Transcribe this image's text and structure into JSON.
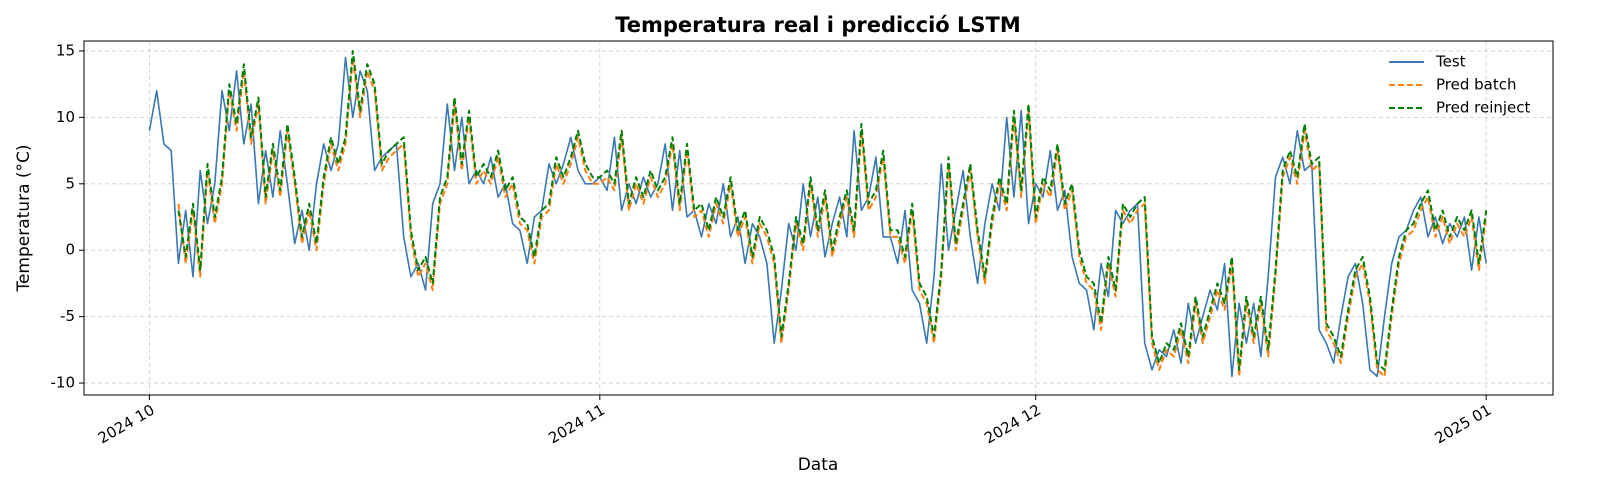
{
  "chart_data": {
    "type": "line",
    "title": "Temperatura real i predicció LSTM",
    "xlabel": "Data",
    "ylabel": "Temperatura (°C)",
    "x": [
      0,
      0.5,
      1,
      1.5,
      2,
      2.5,
      3,
      3.5,
      4,
      4.5,
      5,
      5.5,
      6,
      6.5,
      7,
      7.5,
      8,
      8.5,
      9,
      9.5,
      10,
      10.5,
      11,
      11.5,
      12,
      12.5,
      13,
      13.5,
      14,
      14.5,
      15,
      15.5,
      16,
      16.5,
      17,
      17.5,
      18,
      18.5,
      19,
      19.5,
      20,
      20.5,
      21,
      21.5,
      22,
      22.5,
      23,
      23.5,
      24,
      24.5,
      25,
      25.5,
      26,
      26.5,
      27,
      27.5,
      28,
      28.5,
      29,
      29.5,
      30,
      30.5,
      31,
      31.5,
      32,
      32.5,
      33,
      33.5,
      34,
      34.5,
      35,
      35.5,
      36,
      36.5,
      37,
      37.5,
      38,
      38.5,
      39,
      39.5,
      40,
      40.5,
      41,
      41.5,
      42,
      42.5,
      43,
      43.5,
      44,
      44.5,
      45,
      45.5,
      46,
      46.5,
      47,
      47.5,
      48,
      48.5,
      49,
      49.5,
      50,
      50.5,
      51,
      51.5,
      52,
      52.5,
      53,
      53.5,
      54,
      54.5,
      55,
      55.5,
      56,
      56.5,
      57,
      57.5,
      58,
      58.5,
      59,
      59.5,
      60,
      60.5,
      61,
      61.5,
      62,
      62.5,
      63,
      63.5,
      64,
      64.5,
      65,
      65.5,
      66,
      66.5,
      67,
      67.5,
      68,
      68.5,
      69,
      69.5,
      70,
      70.5,
      71,
      71.5,
      72,
      72.5,
      73,
      73.5,
      74,
      74.5,
      75,
      75.5,
      76,
      76.5,
      77,
      77.5,
      78,
      78.5,
      79,
      79.5,
      80,
      80.5,
      81,
      81.5,
      82,
      82.5,
      83,
      83.5,
      84,
      84.5,
      85,
      85.5,
      86,
      86.5,
      87,
      87.5,
      88,
      88.5,
      89,
      89.5,
      90,
      90.5,
      91,
      91.5,
      92
    ],
    "series": [
      {
        "name": "Test",
        "color": "#3a78b4",
        "dashed": false,
        "values": [
          9,
          12,
          8,
          7.5,
          -1,
          3,
          -2,
          6,
          2,
          5,
          12,
          9,
          13.5,
          8,
          11,
          3.5,
          7.5,
          4,
          9,
          5,
          0.5,
          3,
          0,
          5,
          8,
          6,
          8,
          14.5,
          10,
          13.5,
          12,
          6,
          7,
          7.5,
          8,
          1,
          -2,
          -1,
          -3,
          3.5,
          5,
          11,
          6,
          10,
          5,
          6,
          5,
          7,
          4,
          5,
          2,
          1.5,
          -1,
          2.5,
          3,
          6.5,
          5,
          6.5,
          8.5,
          6,
          5,
          5,
          5.5,
          4.5,
          8.5,
          3,
          5,
          3.5,
          5.5,
          4,
          5,
          8,
          3,
          7.5,
          2.5,
          3,
          1,
          3.5,
          2,
          5,
          1,
          2.5,
          -1,
          2,
          1,
          -1,
          -7,
          -3,
          2,
          0,
          5,
          1,
          4,
          -0.5,
          2,
          4,
          1,
          9,
          3,
          4,
          7,
          1,
          1,
          -1,
          3,
          -3,
          -4,
          -7,
          -2,
          6.5,
          0,
          3,
          6,
          1,
          -2.5,
          2,
          5,
          3,
          10,
          4,
          10.5,
          2,
          5,
          4,
          7.5,
          3,
          4.5,
          -0.5,
          -2.5,
          -3,
          -6,
          -1,
          -3.5,
          3,
          2,
          3,
          3.5,
          -7,
          -9,
          -7.5,
          -8,
          -6,
          -8.5,
          -4,
          -7,
          -5,
          -3,
          -4.5,
          -1,
          -9.5,
          -4,
          -7,
          -4,
          -8,
          -2,
          5.5,
          7,
          5,
          9,
          6,
          6.5,
          -6,
          -7,
          -8.5,
          -5,
          -2,
          -1,
          -4,
          -9,
          -9.5,
          -5,
          -1,
          1,
          1.5,
          3,
          4,
          1,
          2.5,
          0.5,
          2,
          1,
          2.5,
          -1.5,
          2.5,
          -1
        ]
      },
      {
        "name": "Pred batch",
        "color": "#ff7f0e",
        "dashed": true,
        "values": [
          null,
          null,
          null,
          null,
          3.5,
          -1,
          3,
          -2,
          6,
          2,
          5,
          12,
          9,
          13.5,
          8,
          11,
          3.5,
          7.5,
          4,
          9,
          5,
          0.5,
          3,
          0,
          5,
          8,
          6,
          8,
          14.5,
          10,
          13.5,
          12,
          6,
          7,
          7.5,
          8,
          1,
          -2,
          -1,
          -3,
          3.5,
          5,
          11,
          6,
          10,
          5,
          6,
          5,
          7,
          4,
          5,
          2,
          1.5,
          -1,
          2.5,
          3,
          6.5,
          5,
          6.5,
          8.5,
          6,
          5,
          5,
          5.5,
          4.5,
          8.5,
          3,
          5,
          3.5,
          5.5,
          4,
          5,
          8,
          3,
          7.5,
          2.5,
          3,
          1,
          3.5,
          2,
          5,
          1,
          2.5,
          -1,
          2,
          1,
          -1,
          -7,
          -3,
          2,
          0,
          5,
          1,
          4,
          -0.5,
          2,
          4,
          1,
          9,
          3,
          4,
          7,
          1,
          1,
          -1,
          3,
          -3,
          -4,
          -7,
          -2,
          6.5,
          0,
          3,
          6,
          1,
          -2.5,
          2,
          5,
          3,
          10,
          4,
          10.5,
          2,
          5,
          4,
          7.5,
          3,
          4.5,
          -0.5,
          -2.5,
          -3,
          -6,
          -1,
          -3.5,
          3,
          2,
          3,
          3.5,
          -7,
          -9,
          -7.5,
          -8,
          -6,
          -8.5,
          -4,
          -7,
          -5,
          -3,
          -4.5,
          -1,
          -9.5,
          -4,
          -7,
          -4,
          -8,
          -2,
          5.5,
          7,
          5,
          9,
          6,
          6.5,
          -6,
          -7,
          -8.5,
          -5,
          -2,
          -1,
          -4,
          -9,
          -9.5,
          -5,
          -1,
          1,
          1.5,
          3,
          4,
          1,
          2.5,
          0.5,
          2,
          1,
          2.5,
          -1.5,
          2.5
        ]
      },
      {
        "name": "Pred reinject",
        "color": "#008000",
        "dashed": true,
        "values": [
          null,
          null,
          null,
          null,
          3,
          -0.5,
          3.5,
          -1.5,
          6.5,
          2.5,
          5.5,
          12.5,
          9.5,
          14,
          8.5,
          11.5,
          4,
          8,
          4.5,
          9.5,
          5.5,
          1,
          3.5,
          0.5,
          5.5,
          8.5,
          6.5,
          8.5,
          15,
          10.5,
          14,
          12.5,
          6.5,
          7.5,
          8,
          8.5,
          1.5,
          -1.5,
          -0.5,
          -2.5,
          4,
          5.5,
          11.5,
          6.5,
          10.5,
          5.5,
          6.5,
          5.5,
          7.5,
          4.5,
          5.5,
          2.5,
          2,
          -0.5,
          3,
          3.5,
          7,
          5.5,
          7,
          9,
          6.5,
          5.5,
          5.5,
          6,
          5,
          9,
          3.5,
          5.5,
          4,
          6,
          4.5,
          5.5,
          8.5,
          3.5,
          8,
          3,
          3.5,
          1.5,
          4,
          2.5,
          5.5,
          1.5,
          3,
          -0.5,
          2.5,
          1.5,
          -0.5,
          -6.5,
          -2.5,
          2.5,
          0.5,
          5.5,
          1.5,
          4.5,
          0,
          2.5,
          4.5,
          1.5,
          9.5,
          3.5,
          4.5,
          7.5,
          1.5,
          1.5,
          -0.5,
          3.5,
          -2.5,
          -3.5,
          -6.5,
          -1.5,
          7,
          0.5,
          3.5,
          6.5,
          1.5,
          -2,
          2.5,
          5.5,
          3.5,
          10.5,
          4.5,
          11,
          2.5,
          5.5,
          4.5,
          8,
          3.5,
          5,
          0,
          -2,
          -2.5,
          -5.5,
          -0.5,
          -3,
          3.5,
          2.5,
          3.5,
          4,
          -6.5,
          -8.5,
          -7,
          -7.5,
          -5.5,
          -8,
          -3.5,
          -6.5,
          -4.5,
          -2.5,
          -4,
          -0.5,
          -9,
          -3.5,
          -6.5,
          -3.5,
          -7.5,
          -1.5,
          6,
          7.5,
          5.5,
          9.5,
          6.5,
          7,
          -5.5,
          -6.5,
          -8,
          -4.5,
          -1.5,
          -0.5,
          -3.5,
          -8.5,
          -9,
          -4.5,
          -0.5,
          1.5,
          2,
          3.5,
          4.5,
          1.5,
          3,
          1,
          2.5,
          1.5,
          3,
          -1,
          3
        ]
      }
    ],
    "xlim": [
      -4.5,
      96.6
    ],
    "ylim": [
      -10.9,
      15.75
    ],
    "xticks": [
      {
        "value": 0,
        "label": "2024 10"
      },
      {
        "value": 31,
        "label": "2024 11"
      },
      {
        "value": 61,
        "label": "2024 12"
      },
      {
        "value": 92,
        "label": "2025 01"
      }
    ],
    "yticks": [
      -10,
      -5,
      0,
      5,
      10,
      15
    ],
    "grid": true,
    "legend": "upper right"
  }
}
